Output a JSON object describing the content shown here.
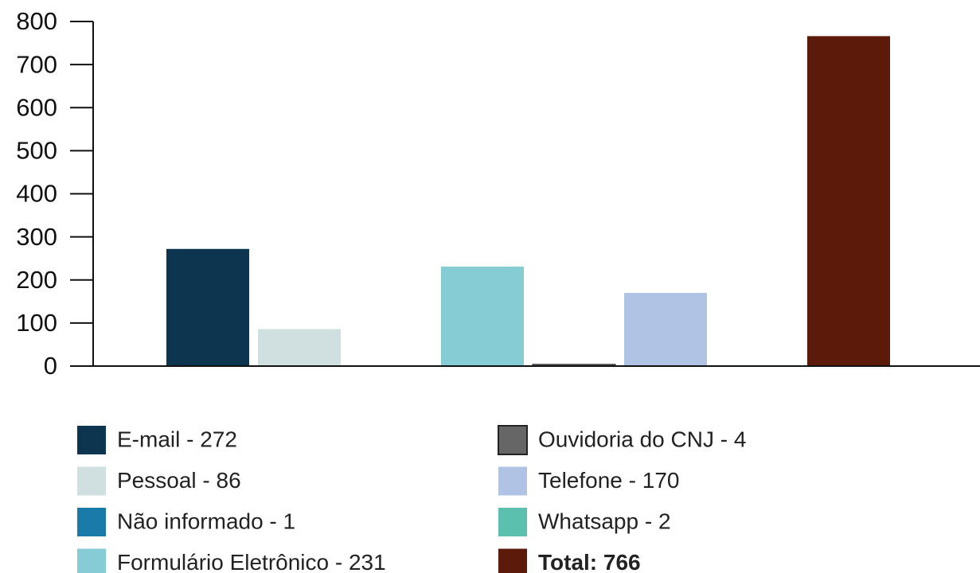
{
  "chart_data": {
    "type": "bar",
    "ylim": [
      0,
      800
    ],
    "yticks": [
      0,
      100,
      200,
      300,
      400,
      500,
      600,
      700,
      800
    ],
    "series": [
      {
        "name": "E-mail - 272",
        "color": "#0d3550",
        "values": [
          272
        ]
      },
      {
        "name": "Pessoal - 86",
        "color": "#d0dfdf",
        "values": [
          86
        ]
      },
      {
        "name": "Não informado - 1",
        "color": "#1a7aa8",
        "values": [
          1
        ]
      },
      {
        "name": "Formulário Eletrônico - 231",
        "color": "#86ccd5",
        "values": [
          231
        ]
      },
      {
        "name": "Ouvidoria do CNJ - 4",
        "color": "#666666",
        "values": [
          4
        ]
      },
      {
        "name": "Telefone - 170",
        "color": "#b0c3e5",
        "values": [
          170
        ]
      },
      {
        "name": "Whatsapp - 2",
        "color": "#5bc0ad",
        "values": [
          2
        ]
      },
      {
        "name": "Total: 766",
        "color": "#5c1a0b",
        "values": [
          766
        ]
      }
    ]
  }
}
